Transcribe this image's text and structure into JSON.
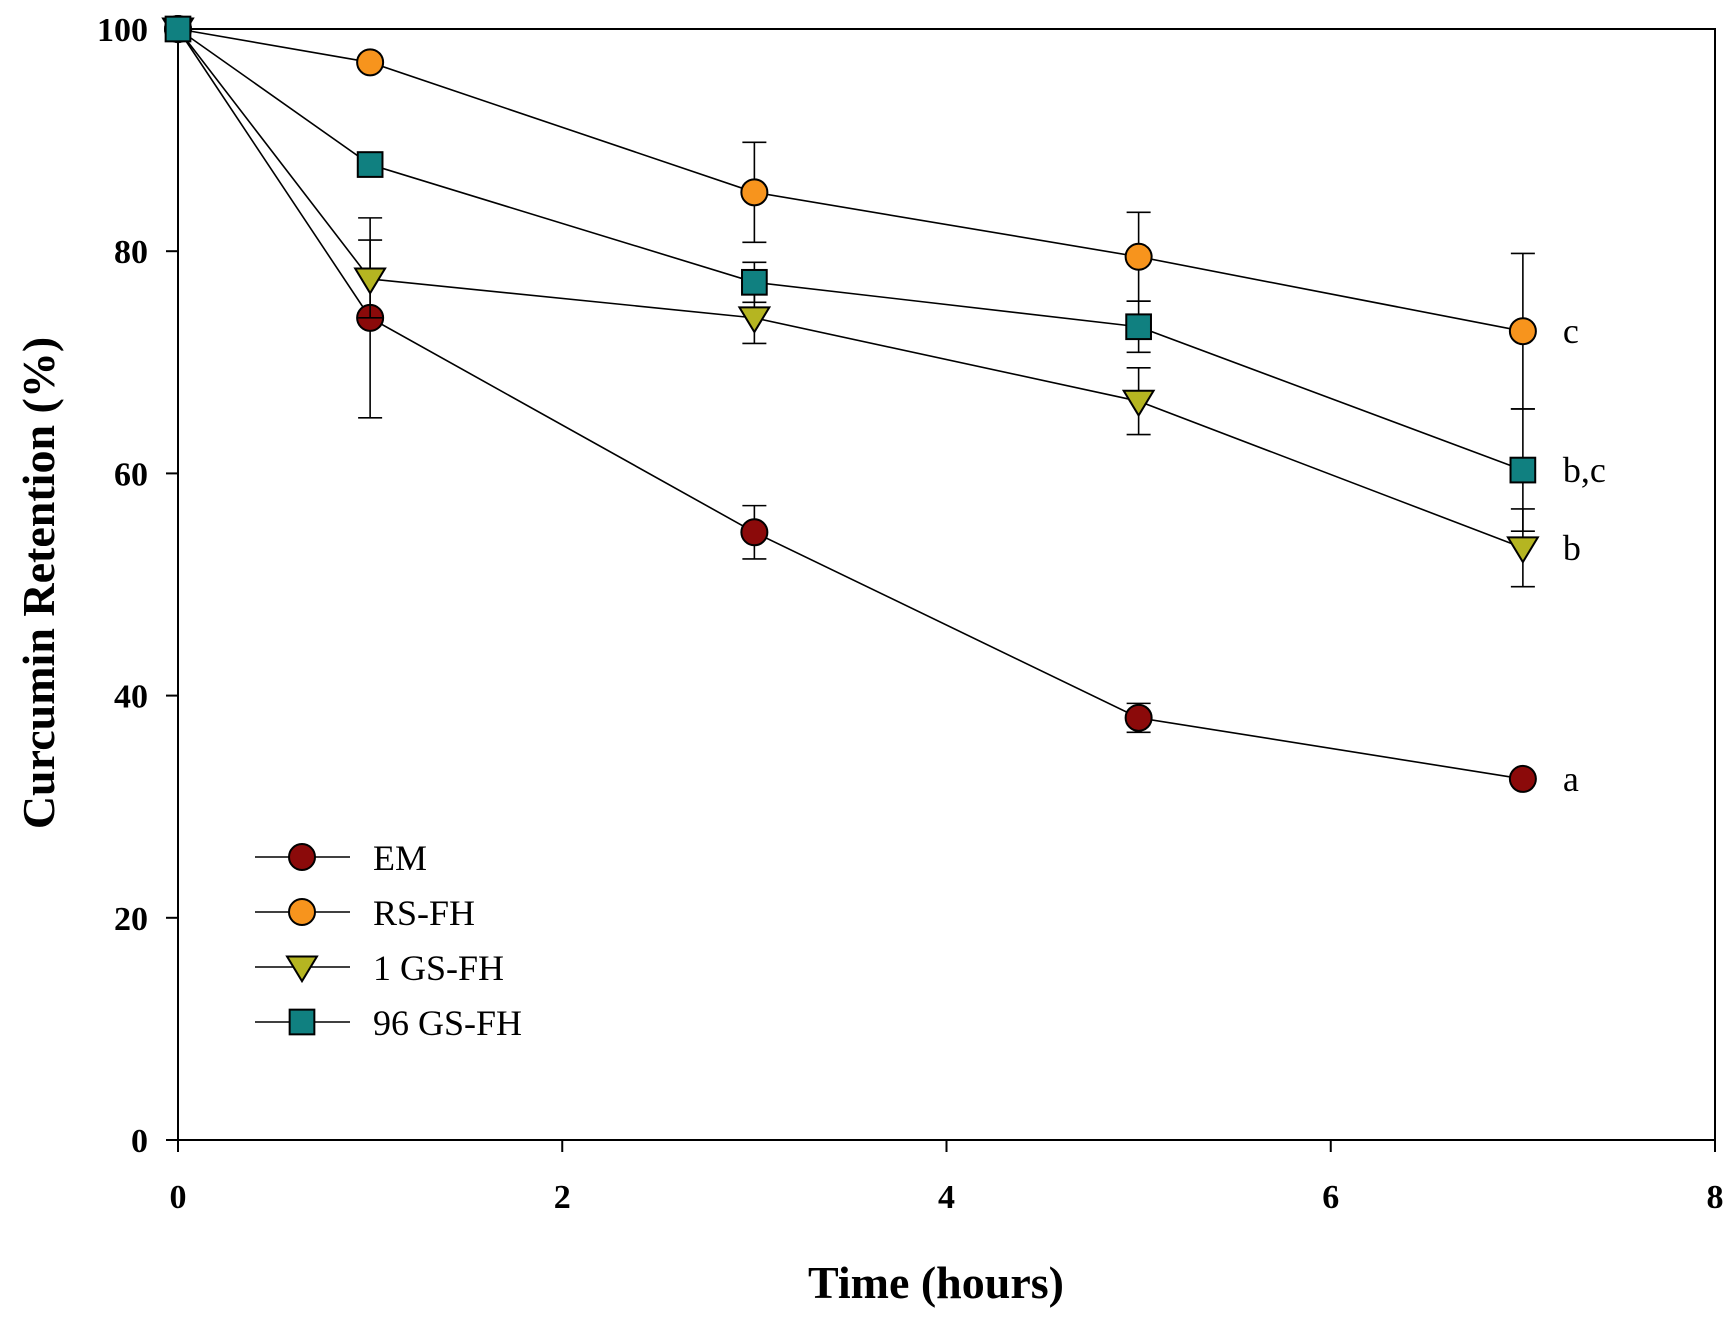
{
  "chart_data": {
    "type": "line",
    "title": "",
    "xlabel": "Time (hours)",
    "ylabel": "Curcumin Retention (%)",
    "xlim": [
      0,
      8
    ],
    "ylim": [
      0,
      100
    ],
    "xticks": [
      0,
      2,
      4,
      6,
      8
    ],
    "yticks": [
      0,
      20,
      40,
      60,
      80,
      100
    ],
    "x": [
      0,
      1,
      3,
      5,
      7
    ],
    "grid": false,
    "legend_position": "bottom-left",
    "series": [
      {
        "name": "EM",
        "marker": "circle",
        "color": "#8b0a0a",
        "values": [
          100,
          74,
          54.7,
          38,
          32.5
        ],
        "errors": [
          0,
          9,
          2.4,
          1.3,
          0
        ],
        "annotation": "a"
      },
      {
        "name": "RS-FH",
        "marker": "circle",
        "color": "#f7941d",
        "values": [
          100,
          97,
          85.3,
          79.5,
          72.8
        ],
        "errors": [
          0,
          0,
          4.5,
          4,
          7
        ],
        "annotation": "c"
      },
      {
        "name": "1 GS-FH",
        "marker": "triangle-down",
        "color": "#b5b521",
        "values": [
          100,
          77.5,
          74,
          66.5,
          53.3
        ],
        "errors": [
          0,
          3.5,
          2.3,
          3,
          3.5
        ],
        "annotation": "b"
      },
      {
        "name": "96 GS-FH",
        "marker": "square",
        "color": "#108080",
        "values": [
          100,
          87.8,
          77.2,
          73.2,
          60.3
        ],
        "errors": [
          0,
          0,
          1.8,
          2.3,
          5.5
        ],
        "annotation": "b,c"
      }
    ]
  }
}
